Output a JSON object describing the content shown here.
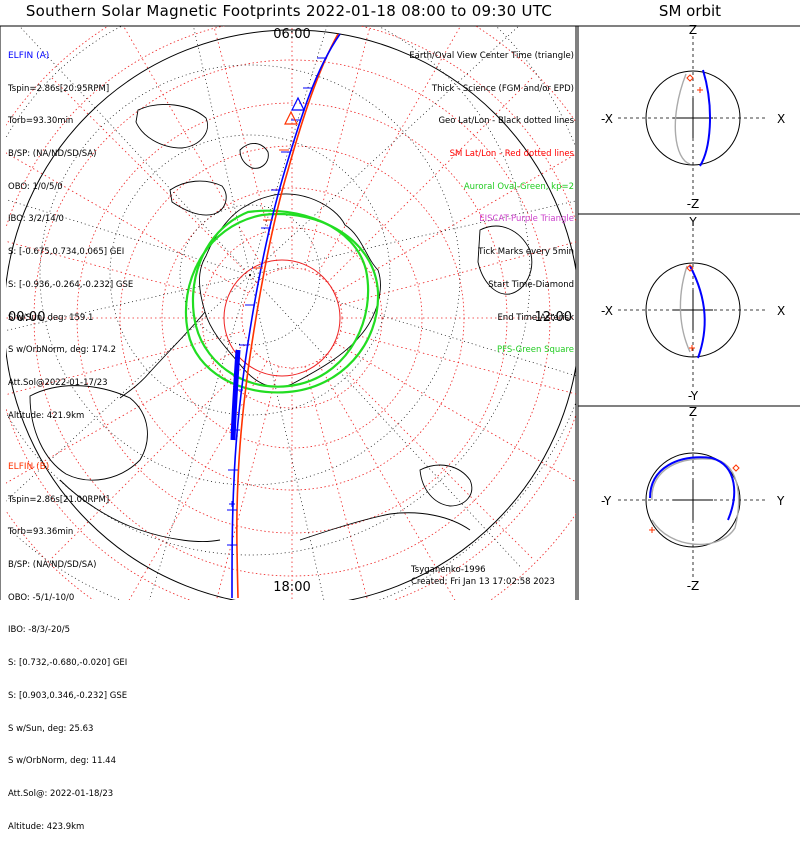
{
  "title": "Southern Solar Magnetic Footprints 2022-01-18 08:00 to 09:30 UTC",
  "orbit_title": "SM orbit",
  "colors": {
    "probe_a": "#0000ff",
    "probe_b": "#ff3300",
    "sm_grid": "#ee2222",
    "geo_grid": "#000000",
    "aurora": "#22dd22",
    "eiscat": "#cc44cc",
    "ss_track": "#aaaaaa"
  },
  "info_a": {
    "name": "ELFIN (A)",
    "lines": [
      "Tspin=2.86s[20.95RPM]",
      "Torb=93.30min",
      "B/SP: (NA/ND/SD/SA)",
      "OBO: 1/0/5/0",
      "IBO: 3/2/14/0",
      "S: [-0.675,0.734,0.065] GEI",
      "S: [-0.936,-0.264,-0.232] GSE",
      "S w/Sun, deg: 159.1",
      "S w/OrbNorm, deg: 174.2",
      "Att.Sol@2022-01-17/23",
      "Altitude: 421.9km"
    ]
  },
  "info_b": {
    "name": "ELFIN (B)",
    "lines": [
      "Tspin=2.86s[21.00RPM]",
      "Torb=93.36min",
      "B/SP: (NA/ND/SD/SA)",
      "OBO: -5/1/-10/0",
      "IBO: -8/3/-20/5",
      "S: [0.732,-0.680,-0.020] GEI",
      "S: [0.903,0.346,-0.232] GSE",
      "S w/Sun, deg: 25.63",
      "S w/OrbNorm, deg: 11.44",
      "Att.Sol@: 2022-01-18/23",
      "Altitude: 423.9km"
    ]
  },
  "legend": [
    {
      "text": "Earth/Oval View Center Time (triangle)",
      "color": "#000000"
    },
    {
      "text": "Thick - Science (FGM and/or EPD)",
      "color": "#000000"
    },
    {
      "text": "Geo Lat/Lon - Black dotted lines",
      "color": "#000000"
    },
    {
      "text": "SM Lat/Lon - Red dotted lines",
      "color": "#ff0000"
    },
    {
      "text": "Auroral Oval-Green, kp=2",
      "color": "#22cc22"
    },
    {
      "text": "EISCAT-Purple Triangle",
      "color": "#cc44cc"
    },
    {
      "text": "Tick Marks every 5min",
      "color": "#000000"
    },
    {
      "text": "Start Time-Diamond",
      "color": "#000000"
    },
    {
      "text": "End Time-Asterisk",
      "color": "#000000"
    },
    {
      "text": "PFS-Green Square",
      "color": "#22cc22"
    }
  ],
  "time_labels": {
    "top": "06:00",
    "left": "00:00",
    "right": "12:00",
    "bottom": "18:00"
  },
  "credits": {
    "author": "Tsyganenko-1996",
    "created": "Created: Fri Jan 13 17:02:58 2023"
  },
  "orbit_panels": [
    {
      "top": "Z",
      "bottom": "-Z",
      "left": "-X",
      "right": "X"
    },
    {
      "top": "Y",
      "bottom": "-Y",
      "left": "-X",
      "right": "X"
    },
    {
      "top": "Z",
      "bottom": "-Z",
      "left": "-Y",
      "right": "Y"
    }
  ],
  "chart_data": {
    "type": "polar footprint map",
    "projection": "southern polar, magnetic local time",
    "sm_latitude_rings_deg": [
      -80,
      -70,
      -60,
      -50,
      -40,
      -30,
      -20,
      -10
    ],
    "mlt_labels": [
      "00:00",
      "06:00",
      "12:00",
      "18:00"
    ],
    "start_time": "08:00",
    "end_time": "09:30",
    "series": [
      {
        "name": "ELFIN (A)",
        "color": "#0000ff"
      },
      {
        "name": "ELFIN (B)",
        "color": "#ff3300"
      },
      {
        "name": "Auroral Oval, kp=2",
        "color": "#22dd22"
      }
    ]
  }
}
